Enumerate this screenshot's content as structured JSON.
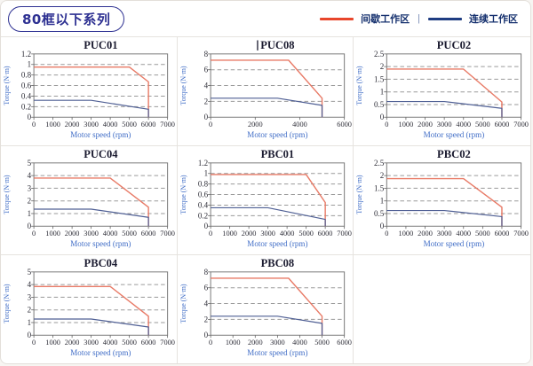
{
  "page": {
    "title": "80框以下系列",
    "legend": [
      {
        "label": "间歇工作区",
        "color": "#e8462b",
        "zone": "intermittent"
      },
      {
        "label": "连续工作区",
        "color": "#1f3d82",
        "zone": "continuous"
      }
    ],
    "legend_separator": "|",
    "colors": {
      "accent_navy": "#2e3192",
      "chart_red": "#e87a66",
      "chart_blue": "#4f5f94",
      "axis_label_blue": "#3f6cc6",
      "tick_text": "#2e2e38",
      "grid_dash": "#9a9a9a",
      "plot_border": "#7a7a7a"
    }
  },
  "chart_data": [
    {
      "type": "line",
      "title": "PUC01",
      "xlabel": "Motor speed (rpm)",
      "ylabel": "Torque (N·m)",
      "xlim": [
        0,
        7000
      ],
      "ylim": [
        0,
        1.2
      ],
      "xticks": [
        0,
        1000,
        2000,
        3000,
        4000,
        5000,
        6000,
        7000
      ],
      "yticks": [
        0,
        0.2,
        0.4,
        0.6,
        0.8,
        1,
        1.2
      ],
      "grid": "horizontal-dashed",
      "legend_position": "none",
      "series": [
        {
          "name": "间歇工作区",
          "zone": "intermittent",
          "color": "#e87a66",
          "points": [
            [
              0,
              0.95
            ],
            [
              5000,
              0.95
            ],
            [
              6000,
              0.67
            ],
            [
              6000,
              0
            ]
          ]
        },
        {
          "name": "连续工作区",
          "zone": "continuous",
          "color": "#4f5f94",
          "points": [
            [
              0,
              0.32
            ],
            [
              3000,
              0.32
            ],
            [
              6000,
              0.15
            ],
            [
              6000,
              0
            ]
          ]
        }
      ]
    },
    {
      "type": "line",
      "title": "PUC08",
      "title_cursor": true,
      "xlabel": "Motor speed (rpm)",
      "ylabel": "Torque (N·m)",
      "xlim": [
        0,
        6000
      ],
      "ylim": [
        0,
        8
      ],
      "xticks": [
        0,
        2000,
        4000,
        6000
      ],
      "yticks": [
        0,
        2,
        4,
        6,
        8
      ],
      "grid": "horizontal-dashed",
      "legend_position": "none",
      "series": [
        {
          "name": "间歇工作区",
          "zone": "intermittent",
          "color": "#e87a66",
          "points": [
            [
              0,
              7.2
            ],
            [
              3500,
              7.2
            ],
            [
              5000,
              2.4
            ],
            [
              5000,
              0
            ]
          ]
        },
        {
          "name": "连续工作区",
          "zone": "continuous",
          "color": "#4f5f94",
          "points": [
            [
              0,
              2.4
            ],
            [
              3000,
              2.4
            ],
            [
              5000,
              1.5
            ],
            [
              5000,
              0
            ]
          ]
        }
      ]
    },
    {
      "type": "line",
      "title": "PUC02",
      "xlabel": "Motor speed (rpm)",
      "ylabel": "Torque (N·m)",
      "xlim": [
        0,
        7000
      ],
      "ylim": [
        0,
        2.5
      ],
      "xticks": [
        0,
        1000,
        2000,
        3000,
        4000,
        5000,
        6000,
        7000
      ],
      "yticks": [
        0,
        0.5,
        1,
        1.5,
        2,
        2.5
      ],
      "grid": "horizontal-dashed",
      "legend_position": "none",
      "series": [
        {
          "name": "间歇工作区",
          "zone": "intermittent",
          "color": "#e87a66",
          "points": [
            [
              0,
              1.9
            ],
            [
              4000,
              1.9
            ],
            [
              6000,
              0.6
            ],
            [
              6000,
              0
            ]
          ]
        },
        {
          "name": "连续工作区",
          "zone": "continuous",
          "color": "#4f5f94",
          "points": [
            [
              0,
              0.62
            ],
            [
              3000,
              0.62
            ],
            [
              6000,
              0.35
            ],
            [
              6000,
              0
            ]
          ]
        }
      ]
    },
    {
      "type": "line",
      "title": "PUC04",
      "xlabel": "Motor speed (rpm)",
      "ylabel": "Torque (N·m)",
      "xlim": [
        0,
        7000
      ],
      "ylim": [
        0,
        5
      ],
      "xticks": [
        0,
        1000,
        2000,
        3000,
        4000,
        5000,
        6000,
        7000
      ],
      "yticks": [
        0,
        1,
        2,
        3,
        4,
        5
      ],
      "grid": "horizontal-dashed",
      "legend_position": "none",
      "series": [
        {
          "name": "间歇工作区",
          "zone": "intermittent",
          "color": "#e87a66",
          "points": [
            [
              0,
              3.8
            ],
            [
              4000,
              3.8
            ],
            [
              6000,
              1.5
            ],
            [
              6000,
              0
            ]
          ]
        },
        {
          "name": "连续工作区",
          "zone": "continuous",
          "color": "#4f5f94",
          "points": [
            [
              0,
              1.35
            ],
            [
              3000,
              1.35
            ],
            [
              6000,
              0.7
            ],
            [
              6000,
              0
            ]
          ]
        }
      ]
    },
    {
      "type": "line",
      "title": "PBC01",
      "xlabel": "Motor speed (rpm)",
      "ylabel": "Torque (N·m)",
      "xlim": [
        0,
        7000
      ],
      "ylim": [
        0,
        1.2
      ],
      "xticks": [
        0,
        1000,
        2000,
        3000,
        4000,
        5000,
        6000,
        7000
      ],
      "yticks": [
        0,
        0.2,
        0.4,
        0.6,
        0.8,
        1,
        1.2
      ],
      "grid": "horizontal-dashed",
      "legend_position": "none",
      "series": [
        {
          "name": "间歇工作区",
          "zone": "intermittent",
          "color": "#e87a66",
          "points": [
            [
              0,
              0.98
            ],
            [
              5000,
              0.98
            ],
            [
              6000,
              0.45
            ],
            [
              6000,
              0
            ]
          ]
        },
        {
          "name": "连续工作区",
          "zone": "continuous",
          "color": "#4f5f94",
          "points": [
            [
              0,
              0.35
            ],
            [
              3000,
              0.35
            ],
            [
              6000,
              0.13
            ],
            [
              6000,
              0
            ]
          ]
        }
      ]
    },
    {
      "type": "line",
      "title": "PBC02",
      "xlabel": "Motor speed (rpm)",
      "ylabel": "Torque (N·m)",
      "xlim": [
        0,
        7000
      ],
      "ylim": [
        0,
        2.5
      ],
      "xticks": [
        0,
        1000,
        2000,
        3000,
        4000,
        5000,
        6000,
        7000
      ],
      "yticks": [
        0,
        0.5,
        1,
        1.5,
        2,
        2.5
      ],
      "grid": "horizontal-dashed",
      "legend_position": "none",
      "series": [
        {
          "name": "间歇工作区",
          "zone": "intermittent",
          "color": "#e87a66",
          "points": [
            [
              0,
              1.88
            ],
            [
              4000,
              1.88
            ],
            [
              6000,
              0.75
            ],
            [
              6000,
              0
            ]
          ]
        },
        {
          "name": "连续工作区",
          "zone": "continuous",
          "color": "#4f5f94",
          "points": [
            [
              0,
              0.62
            ],
            [
              3000,
              0.62
            ],
            [
              6000,
              0.38
            ],
            [
              6000,
              0
            ]
          ]
        }
      ]
    },
    {
      "type": "line",
      "title": "PBC04",
      "xlabel": "Motor speed (rpm)",
      "ylabel": "Torque (N·m)",
      "xlim": [
        0,
        7000
      ],
      "ylim": [
        0,
        5
      ],
      "xticks": [
        0,
        1000,
        2000,
        3000,
        4000,
        5000,
        6000,
        7000
      ],
      "yticks": [
        0,
        1,
        2,
        3,
        4,
        5
      ],
      "grid": "horizontal-dashed",
      "legend_position": "none",
      "series": [
        {
          "name": "间歇工作区",
          "zone": "intermittent",
          "color": "#e87a66",
          "points": [
            [
              0,
              3.85
            ],
            [
              4000,
              3.85
            ],
            [
              6000,
              1.5
            ],
            [
              6000,
              0
            ]
          ]
        },
        {
          "name": "连续工作区",
          "zone": "continuous",
          "color": "#4f5f94",
          "points": [
            [
              0,
              1.28
            ],
            [
              3000,
              1.28
            ],
            [
              6000,
              0.65
            ],
            [
              6000,
              0
            ]
          ]
        }
      ]
    },
    {
      "type": "line",
      "title": "PBC08",
      "xlabel": "Motor speed (rpm)",
      "ylabel": "Torque (N·m)",
      "xlim": [
        0,
        6000
      ],
      "ylim": [
        0,
        8
      ],
      "xticks": [
        0,
        1000,
        2000,
        3000,
        4000,
        5000,
        6000
      ],
      "yticks": [
        0,
        2,
        4,
        6,
        8
      ],
      "grid": "horizontal-dashed",
      "legend_position": "none",
      "series": [
        {
          "name": "间歇工作区",
          "zone": "intermittent",
          "color": "#e87a66",
          "points": [
            [
              0,
              7.2
            ],
            [
              3500,
              7.2
            ],
            [
              5000,
              2.4
            ],
            [
              5000,
              0
            ]
          ]
        },
        {
          "name": "连续工作区",
          "zone": "continuous",
          "color": "#4f5f94",
          "points": [
            [
              0,
              2.4
            ],
            [
              3000,
              2.4
            ],
            [
              5000,
              1.5
            ],
            [
              5000,
              0
            ]
          ]
        }
      ]
    }
  ]
}
